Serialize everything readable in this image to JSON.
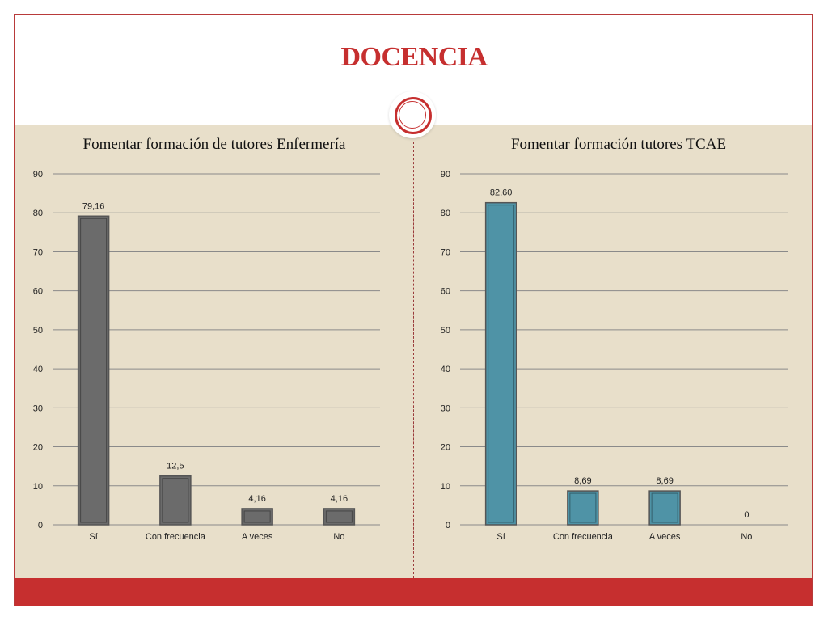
{
  "page": {
    "title": "DOCENCIA",
    "colors": {
      "accent": "#c62f2f",
      "panel_bg": "#e8dfca"
    }
  },
  "chart_data": [
    {
      "type": "bar",
      "title": "Fomentar formación de tutores Enfermería",
      "categories": [
        "Sí",
        "Con frecuencia",
        "A veces",
        "No"
      ],
      "values": [
        79.16,
        12.5,
        4.16,
        4.16
      ],
      "data_labels": [
        "79,16",
        "12,5",
        "4,16",
        "4,16"
      ],
      "ylim": [
        0,
        90
      ],
      "yticks": [
        0,
        10,
        20,
        30,
        40,
        50,
        60,
        70,
        80,
        90
      ],
      "grid": true,
      "bar_color": "#6b6b6b",
      "xlabel": "",
      "ylabel": ""
    },
    {
      "type": "bar",
      "title": "Fomentar formación tutores TCAE",
      "categories": [
        "Sí",
        "Con frecuencia",
        "A veces",
        "No"
      ],
      "values": [
        82.6,
        8.69,
        8.69,
        0
      ],
      "data_labels": [
        "82,60",
        "8,69",
        "8,69",
        "0"
      ],
      "ylim": [
        0,
        90
      ],
      "yticks": [
        0,
        10,
        20,
        30,
        40,
        50,
        60,
        70,
        80,
        90
      ],
      "grid": true,
      "bar_color": "#4f93a6",
      "xlabel": "",
      "ylabel": ""
    }
  ]
}
